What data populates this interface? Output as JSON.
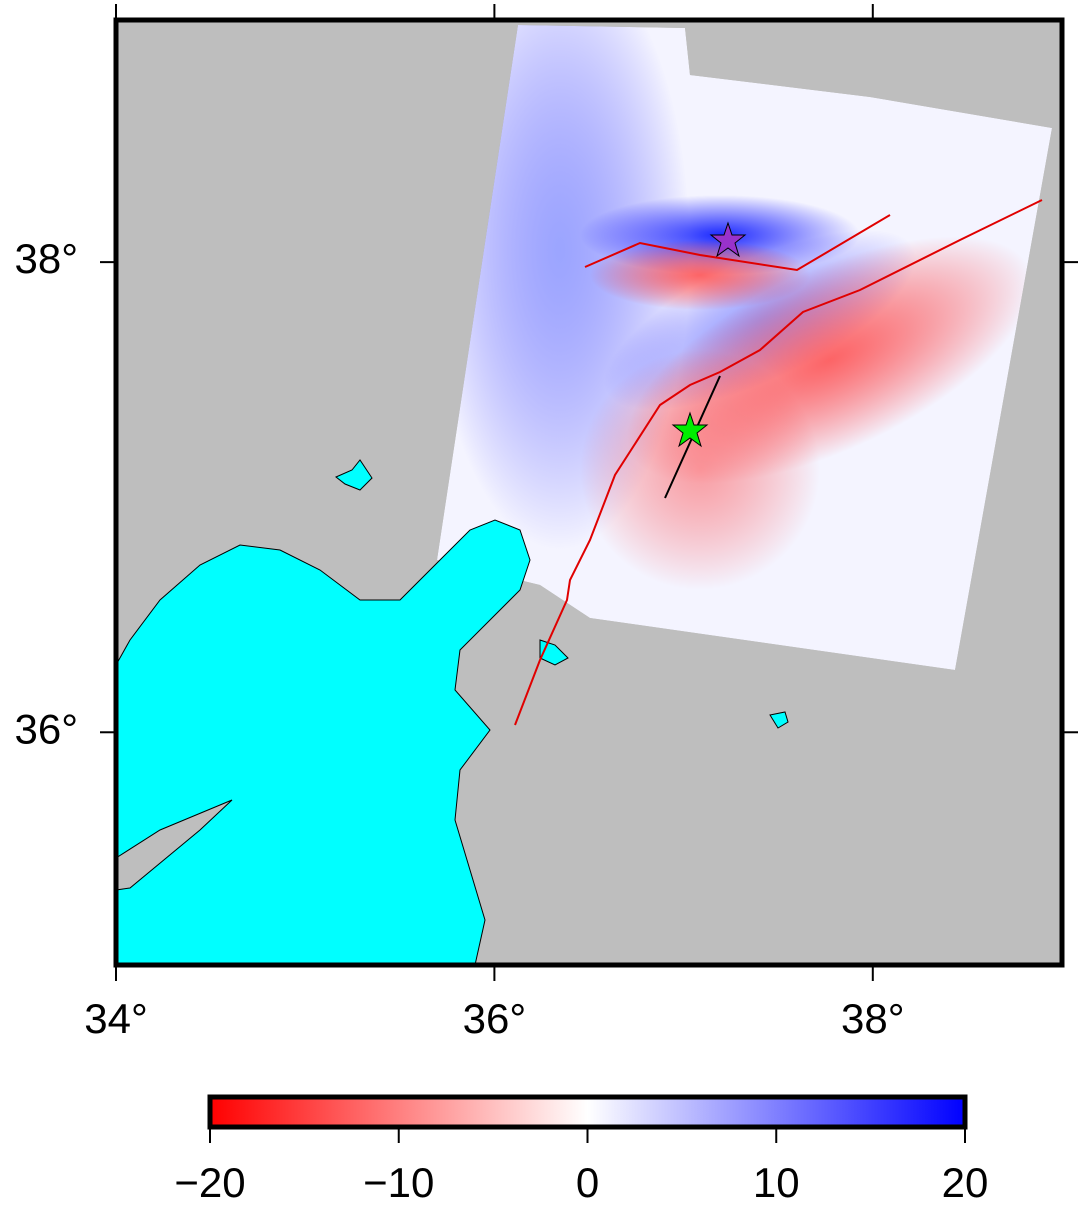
{
  "map": {
    "xlim": [
      34,
      39
    ],
    "ylim": [
      35.01,
      39.03
    ],
    "xticks": [
      {
        "value": 34,
        "label": "34°"
      },
      {
        "value": 36,
        "label": "36°"
      },
      {
        "value": 38,
        "label": "38°"
      }
    ],
    "yticks": [
      {
        "value": 36,
        "label": "36°"
      },
      {
        "value": 38,
        "label": "38°"
      }
    ]
  },
  "colorbar": {
    "clim": [
      -20,
      20
    ],
    "ticks": [
      {
        "value": -20,
        "label": "−20"
      },
      {
        "value": -10,
        "label": "−10"
      },
      0,
      10,
      20
    ],
    "colors": [
      "#ff0000",
      "#ffffff",
      "#0000ff"
    ]
  }
}
